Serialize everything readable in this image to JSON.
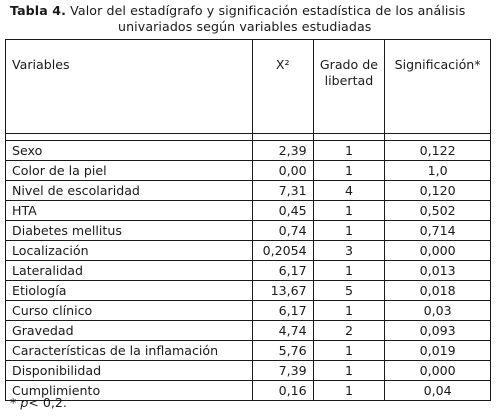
{
  "caption": {
    "label": "Tabla 4.",
    "line1": " Valor del estadígrafo y significación estadística de los análisis",
    "line2": "univariados según variables estudiadas"
  },
  "table": {
    "headers": {
      "variable": "Variables",
      "x2": "X²",
      "grado": "Grado de libertad",
      "significacion": "Significación*"
    },
    "rows": [
      {
        "variable": "Sexo",
        "x2": "2,39",
        "gl": "1",
        "sig": "0,122"
      },
      {
        "variable": "Color de la piel",
        "x2": "0,00",
        "gl": "1",
        "sig": "1,0"
      },
      {
        "variable": "Nivel de escolaridad",
        "x2": "7,31",
        "gl": "4",
        "sig": "0,120"
      },
      {
        "variable": "HTA",
        "x2": "0,45",
        "gl": "1",
        "sig": "0,502"
      },
      {
        "variable": "Diabetes mellitus",
        "x2": "0,74",
        "gl": "1",
        "sig": "0,714"
      },
      {
        "variable": "Localización",
        "x2": "0,2054",
        "gl": "3",
        "sig": "0,000"
      },
      {
        "variable": "Lateralidad",
        "x2": "6,17",
        "gl": "1",
        "sig": "0,013"
      },
      {
        "variable": "Etiología",
        "x2": "13,67",
        "gl": "5",
        "sig": "0,018"
      },
      {
        "variable": "Curso clínico",
        "x2": "6,17",
        "gl": "1",
        "sig": "0,03"
      },
      {
        "variable": "Gravedad",
        "x2": "4,74",
        "gl": "2",
        "sig": "0,093"
      },
      {
        "variable": "Características de la inflamación",
        "x2": "5,76",
        "gl": "1",
        "sig": "0,019"
      },
      {
        "variable": "Disponibilidad",
        "x2": "7,39",
        "gl": "1",
        "sig": "0,000"
      },
      {
        "variable": "Cumplimiento",
        "x2": "0,16",
        "gl": "1",
        "sig": "0,04"
      }
    ]
  },
  "footnote": {
    "mark": "* ",
    "p": "p",
    "rest": "< 0,2."
  }
}
